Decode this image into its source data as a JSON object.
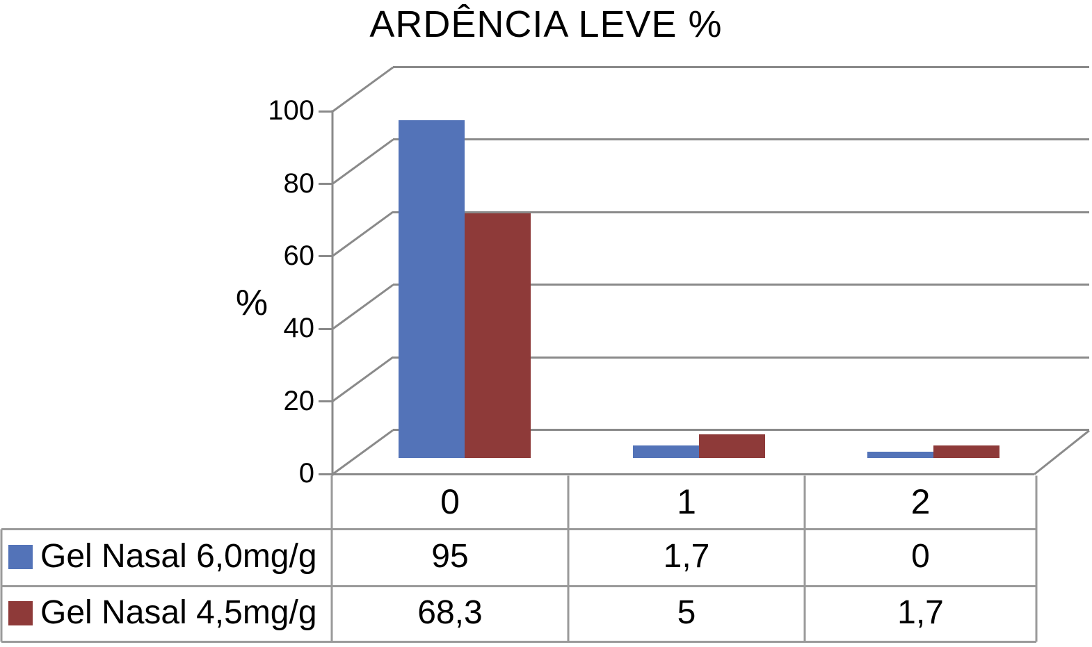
{
  "chart_data": {
    "type": "bar",
    "title": "ARDÊNCIA LEVE %",
    "ylabel": "%",
    "categories": [
      "0",
      "1",
      "2"
    ],
    "series": [
      {
        "name": "Gel Nasal 6,0mg/g",
        "color": "#5373B8",
        "values": [
          95,
          1.7,
          0
        ],
        "display_values": [
          "95",
          "1,7",
          "0"
        ]
      },
      {
        "name": "Gel Nasal 4,5mg/g",
        "color": "#8E3A39",
        "values": [
          68.3,
          5,
          1.7
        ],
        "display_values": [
          "68,3",
          "5",
          "1,7"
        ]
      }
    ],
    "y_ticks": [
      "0",
      "20",
      "40",
      "60",
      "80",
      "100"
    ],
    "ylim": [
      0,
      100
    ],
    "grid": true,
    "projection": "3d-walls",
    "legend_position": "table-left",
    "data_table_shown": true
  },
  "colors": {
    "background": "#FFFFFF",
    "axis_and_grid": "#8A8A8A",
    "table_border": "#9A9A9A",
    "text": "#000000",
    "series_blue": "#5373B8",
    "series_red": "#8E3A39"
  }
}
